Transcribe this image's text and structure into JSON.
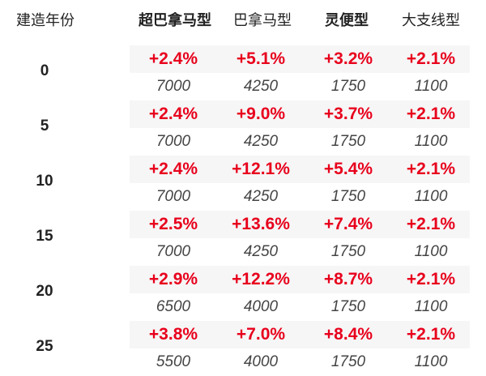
{
  "headers": [
    "建造年份",
    "超巴拿马型",
    "巴拿马型",
    "灵便型",
    "大支线型"
  ],
  "rows": [
    {
      "year": "0",
      "pct": [
        "+2.4%",
        "+5.1%",
        "+3.2%",
        "+2.1%"
      ],
      "price": [
        "7000",
        "4250",
        "1750",
        "1100"
      ]
    },
    {
      "year": "5",
      "pct": [
        "+2.4%",
        "+9.0%",
        "+3.7%",
        "+2.1%"
      ],
      "price": [
        "7000",
        "4250",
        "1750",
        "1100"
      ]
    },
    {
      "year": "10",
      "pct": [
        "+2.4%",
        "+12.1%",
        "+5.4%",
        "+2.1%"
      ],
      "price": [
        "7000",
        "4250",
        "1750",
        "1100"
      ]
    },
    {
      "year": "15",
      "pct": [
        "+2.5%",
        "+13.6%",
        "+7.4%",
        "+2.1%"
      ],
      "price": [
        "7000",
        "4250",
        "1750",
        "1100"
      ]
    },
    {
      "year": "20",
      "pct": [
        "+2.9%",
        "+12.2%",
        "+8.7%",
        "+2.1%"
      ],
      "price": [
        "6500",
        "4000",
        "1750",
        "1100"
      ]
    },
    {
      "year": "25",
      "pct": [
        "+3.8%",
        "+7.0%",
        "+8.4%",
        "+2.1%"
      ],
      "price": [
        "5500",
        "4000",
        "1750",
        "1100"
      ]
    }
  ],
  "colors": {
    "positive": "#e8001c",
    "text": "#222222",
    "band": "#f6f6f6"
  }
}
